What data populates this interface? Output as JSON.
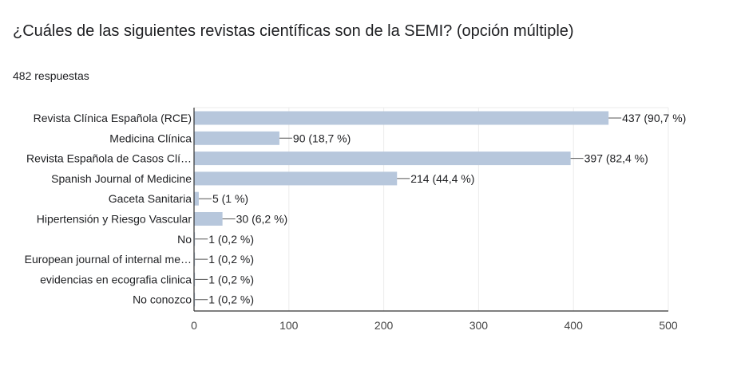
{
  "question": {
    "title": "¿Cuáles de las siguientes revistas científicas son de la SEMI? (opción múltiple)",
    "response_count": "482 respuestas"
  },
  "colors": {
    "bar": "#b7c7dc",
    "axis": "#333333",
    "grid": "#ebebeb"
  },
  "chart_data": {
    "type": "bar",
    "orientation": "horizontal",
    "title": "",
    "xlabel": "",
    "ylabel": "",
    "xlim": [
      0,
      500
    ],
    "xticks": [
      0,
      100,
      200,
      300,
      400,
      500
    ],
    "grid": true,
    "categories": [
      "Revista Clínica Española (RCE)",
      "Medicina Clínica",
      "Revista Española de Casos Clí…",
      "Spanish Journal of Medicine",
      "Gaceta Sanitaria",
      "Hipertensión y Riesgo Vascular",
      "No",
      "European journal of internal me…",
      "evidencias en ecografia clinica",
      "No conozco"
    ],
    "values": [
      437,
      90,
      397,
      214,
      5,
      30,
      1,
      1,
      1,
      1
    ],
    "data_labels": [
      "437 (90,7 %)",
      "90 (18,7 %)",
      "397 (82,4 %)",
      "214 (44,4 %)",
      "5 (1 %)",
      "30 (6,2 %)",
      "1 (0,2 %)",
      "1 (0,2 %)",
      "1 (0,2 %)",
      "1 (0,2 %)"
    ]
  }
}
